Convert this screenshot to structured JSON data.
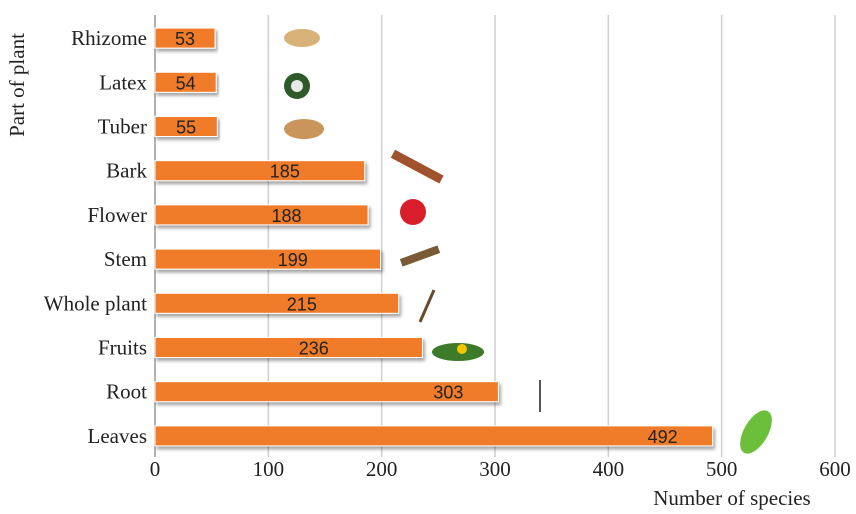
{
  "chart_data": {
    "type": "bar",
    "orientation": "horizontal",
    "x_label": "Number of species",
    "y_label": "Part of plant",
    "categories": [
      "Rhizome",
      "Latex",
      "Tuber",
      "Bark",
      "Flower",
      "Stem",
      "Whole plant",
      "Fruits",
      "Root",
      "Leaves"
    ],
    "values": [
      53,
      54,
      55,
      185,
      188,
      199,
      215,
      236,
      303,
      492
    ],
    "color": "#f07b2c",
    "xlim": [
      0,
      600
    ],
    "xticks": [
      0,
      100,
      200,
      300,
      400,
      500,
      600
    ],
    "grid": true
  }
}
